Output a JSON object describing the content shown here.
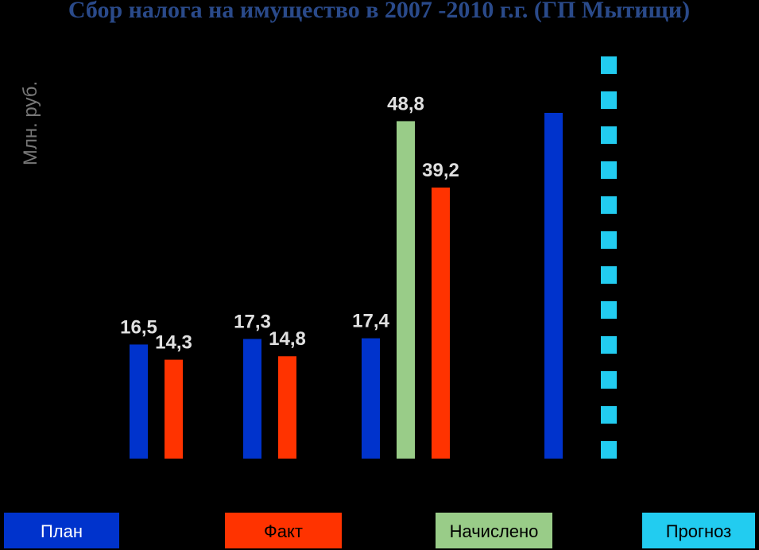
{
  "chart_data": {
    "type": "bar",
    "title": "Сбор налога на имущество в 2007 -2010 г.г. (ГП Мытищи)",
    "y_label": "Млн. руб.",
    "categories": [
      null,
      null,
      null,
      null
    ],
    "series": [
      {
        "name": "План",
        "color": "#0033cc",
        "values": [
          16.5,
          17.3,
          17.4,
          50
        ],
        "value_labels": [
          "16,5",
          "17,3",
          "17,4",
          null
        ]
      },
      {
        "name": "Факт",
        "color": "#ff3300",
        "values": [
          14.3,
          14.8,
          39.2,
          null
        ],
        "value_labels": [
          "14,3",
          "14,8",
          "39,2",
          null
        ]
      },
      {
        "name": "Начислено",
        "color": "#99cc88",
        "values": [
          null,
          null,
          48.8,
          null
        ],
        "value_labels": [
          null,
          null,
          "48,8",
          null
        ]
      },
      {
        "name": "Прогноз",
        "color": "#22ccf0",
        "values": [
          null,
          null,
          null,
          60
        ],
        "value_labels": [
          null,
          null,
          null,
          null
        ],
        "dashed": true
      }
    ]
  }
}
